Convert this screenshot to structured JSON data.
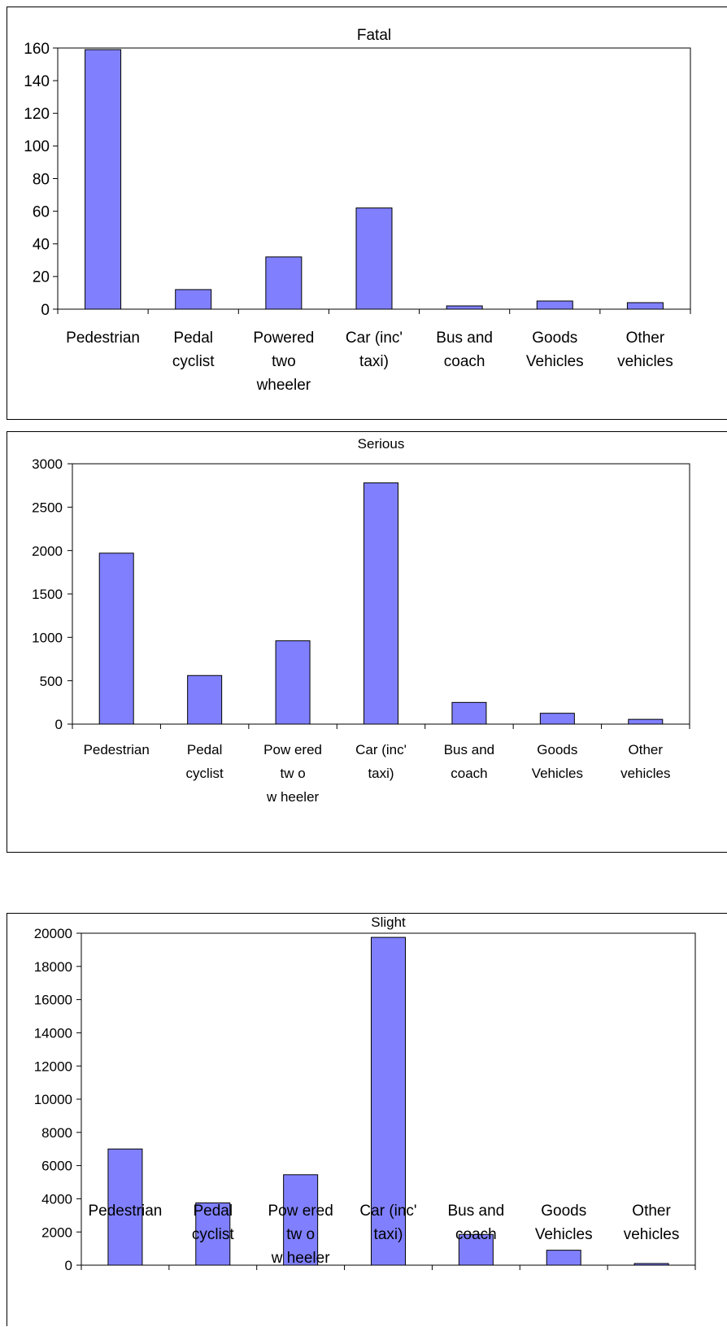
{
  "chart_data": [
    {
      "type": "bar",
      "title": "Fatal",
      "categories": [
        [
          "Pedestrian"
        ],
        [
          "Pedal",
          "cyclist"
        ],
        [
          "Powered",
          "two",
          "wheeler"
        ],
        [
          "Car (inc'",
          "taxi)"
        ],
        [
          "Bus and",
          "coach"
        ],
        [
          "Goods",
          "Vehicles"
        ],
        [
          "Other",
          "vehicles"
        ]
      ],
      "values": [
        159,
        12,
        32,
        62,
        2,
        5,
        4
      ],
      "ylim": [
        0,
        160
      ],
      "yticks": [
        "0",
        "20",
        "40",
        "60",
        "80",
        "100",
        "120",
        "140",
        "160"
      ],
      "xlabel": "",
      "ylabel": "",
      "bar_color": "#8080FF",
      "grid": false,
      "legend": "none"
    },
    {
      "type": "bar",
      "title": "Serious",
      "categories": [
        [
          "Pedestrian"
        ],
        [
          "Pedal",
          "cyclist"
        ],
        [
          "Pow ered",
          "tw o",
          "w heeler"
        ],
        [
          "Car (inc'",
          "taxi)"
        ],
        [
          "Bus and",
          "coach"
        ],
        [
          "Goods",
          "Vehicles"
        ],
        [
          "Other",
          "vehicles"
        ]
      ],
      "values": [
        1970,
        560,
        960,
        2780,
        250,
        125,
        55
      ],
      "ylim": [
        0,
        3000
      ],
      "yticks": [
        "0",
        "500",
        "1000",
        "1500",
        "2000",
        "2500",
        "3000"
      ],
      "xlabel": "",
      "ylabel": "",
      "bar_color": "#8080FF",
      "grid": false,
      "legend": "none"
    },
    {
      "type": "bar",
      "title": "Slight",
      "categories": [
        [
          "Pedestrian"
        ],
        [
          "Pedal",
          "cyclist"
        ],
        [
          "Pow ered",
          "tw o",
          "w heeler"
        ],
        [
          "Car (inc'",
          "taxi)"
        ],
        [
          "Bus and",
          "coach"
        ],
        [
          "Goods",
          "Vehicles"
        ],
        [
          "Other",
          "vehicles"
        ]
      ],
      "values": [
        7000,
        3750,
        5450,
        19750,
        1850,
        900,
        100
      ],
      "ylim": [
        0,
        20000
      ],
      "yticks": [
        "0",
        "2000",
        "4000",
        "6000",
        "8000",
        "10000",
        "12000",
        "14000",
        "16000",
        "18000",
        "20000"
      ],
      "xlabel": "",
      "ylabel": "",
      "bar_color": "#8080FF",
      "grid": false,
      "legend": "none"
    }
  ]
}
